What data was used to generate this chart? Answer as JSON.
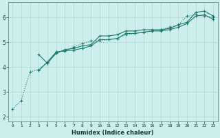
{
  "xlabel": "Humidex (Indice chaleur)",
  "ylabel": "",
  "background_color": "#ceeeed",
  "line_color": "#1a7a6a",
  "grid_color": "#aad8d5",
  "xlim": [
    -0.5,
    23.5
  ],
  "ylim": [
    1.8,
    6.6
  ],
  "yticks": [
    2,
    3,
    4,
    5,
    6
  ],
  "xticks": [
    0,
    1,
    2,
    3,
    4,
    5,
    6,
    7,
    8,
    9,
    10,
    11,
    12,
    13,
    14,
    15,
    16,
    17,
    18,
    19,
    20,
    21,
    22,
    23
  ],
  "line1_x": [
    0,
    1,
    2,
    3,
    4,
    5,
    6,
    7,
    8,
    9,
    10,
    11,
    12,
    13,
    14,
    15,
    16,
    17,
    18,
    19,
    20,
    21,
    22,
    23
  ],
  "line1_y": [
    2.3,
    2.65,
    3.8,
    3.9,
    4.2,
    4.6,
    4.65,
    4.8,
    4.95,
    5.05,
    5.05,
    5.1,
    5.15,
    5.3,
    5.35,
    5.4,
    5.45,
    5.5,
    5.6,
    5.7,
    6.05,
    6.1,
    6.05,
    6.0
  ],
  "line2_x": [
    3,
    4,
    5,
    6,
    7,
    8,
    9,
    10,
    11,
    12,
    13,
    14,
    15,
    16,
    17,
    18,
    19,
    20,
    21,
    22,
    23
  ],
  "line2_y": [
    4.5,
    4.15,
    4.55,
    4.7,
    4.75,
    4.85,
    4.9,
    5.25,
    5.25,
    5.3,
    5.45,
    5.45,
    5.5,
    5.5,
    5.5,
    5.55,
    5.7,
    5.8,
    6.2,
    6.25,
    6.05
  ],
  "line3_x": [
    3,
    4,
    5,
    6,
    7,
    8,
    9,
    10,
    11,
    12,
    13,
    14,
    15,
    16,
    17,
    18,
    19,
    20,
    21,
    22,
    23
  ],
  "line3_y": [
    3.85,
    4.2,
    4.6,
    4.65,
    4.68,
    4.75,
    4.85,
    5.1,
    5.1,
    5.15,
    5.35,
    5.35,
    5.4,
    5.45,
    5.45,
    5.5,
    5.6,
    5.75,
    6.05,
    6.1,
    5.92
  ]
}
